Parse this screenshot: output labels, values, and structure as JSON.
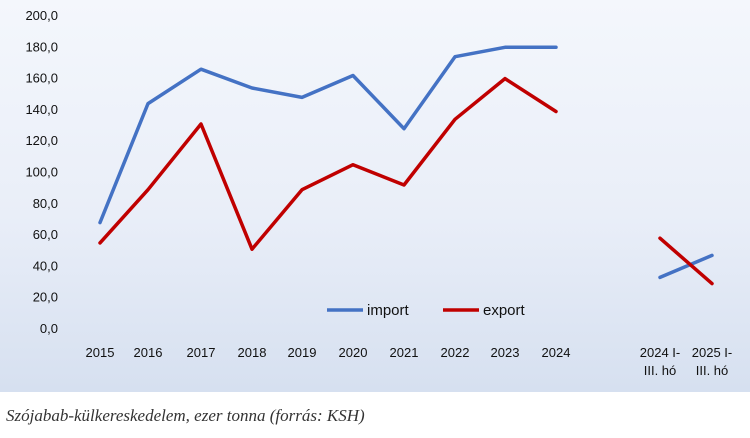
{
  "chart_data": {
    "type": "line",
    "categories": [
      "2015",
      "2016",
      "2017",
      "2018",
      "2019",
      "2020",
      "2021",
      "2022",
      "2023",
      "2024",
      "2024 I-III. hó",
      "2025 I-III. hó"
    ],
    "category_labels": [
      [
        "2015"
      ],
      [
        "2016"
      ],
      [
        "2017"
      ],
      [
        "2018"
      ],
      [
        "2019"
      ],
      [
        "2020"
      ],
      [
        "2021"
      ],
      [
        "2022"
      ],
      [
        "2023"
      ],
      [
        "2024"
      ],
      [
        "2024 I-",
        "III. hó"
      ],
      [
        "2025 I-",
        "III. hó"
      ]
    ],
    "y_tick_labels": [
      "0,0",
      "20,0",
      "40,0",
      "60,0",
      "80,0",
      "100,0",
      "120,0",
      "140,0",
      "160,0",
      "180,0",
      "200,0"
    ],
    "ylim": [
      0,
      200
    ],
    "grid": false,
    "legend_position": "bottom-center",
    "series": [
      {
        "name": "import",
        "color": "#4472c4",
        "segments": [
          [
            68,
            144,
            166,
            154,
            148,
            162,
            128,
            174,
            180,
            180
          ],
          [
            33,
            47
          ]
        ]
      },
      {
        "name": "export",
        "color": "#c00000",
        "segments": [
          [
            55,
            89,
            131,
            51,
            89,
            105,
            92,
            134,
            160,
            139
          ],
          [
            58,
            29
          ]
        ]
      }
    ]
  },
  "caption": "Szójabab-külkereskedelem, ezer tonna (forrás: KSH)"
}
